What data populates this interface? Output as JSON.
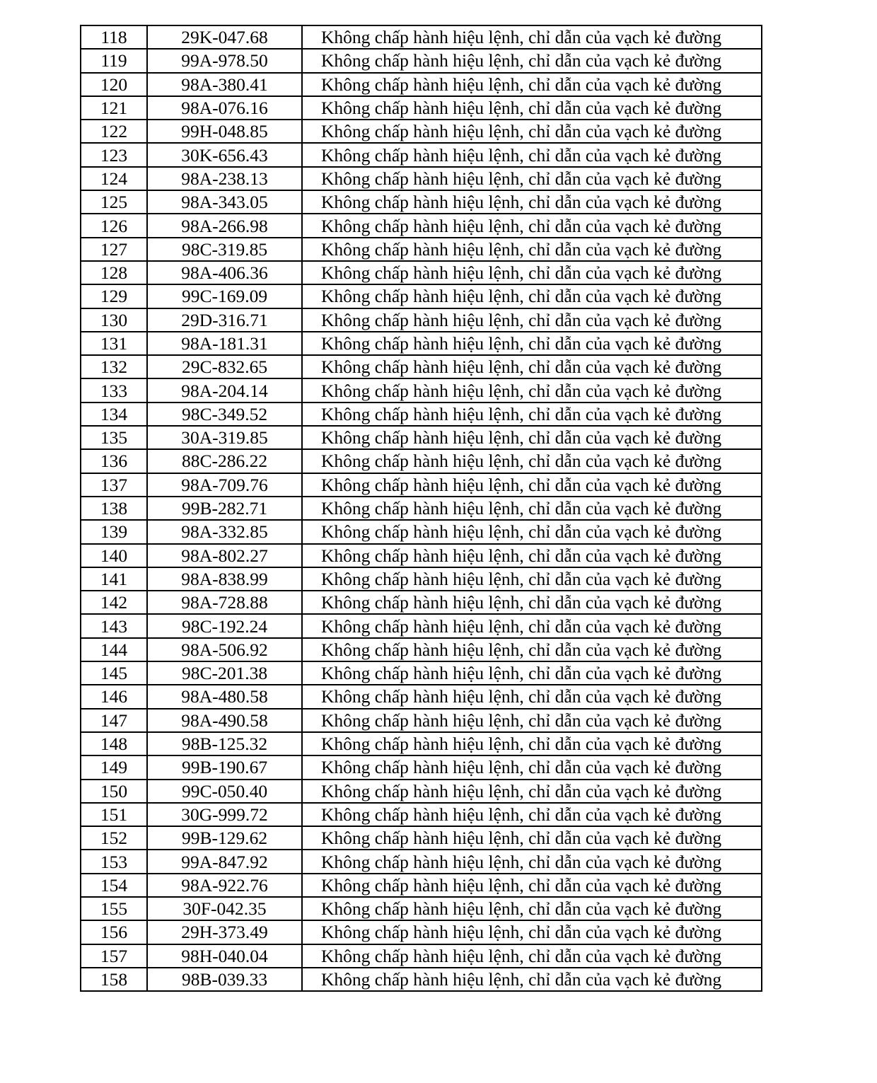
{
  "table": {
    "rows": [
      {
        "stt": "118",
        "plate": "29K-047.68",
        "violation": "Không chấp hành hiệu lệnh, chỉ dẫn của vạch kẻ đường"
      },
      {
        "stt": "119",
        "plate": "99A-978.50",
        "violation": "Không chấp hành hiệu lệnh, chỉ dẫn của vạch kẻ đường"
      },
      {
        "stt": "120",
        "plate": "98A-380.41",
        "violation": "Không chấp hành hiệu lệnh, chỉ dẫn của vạch kẻ đường"
      },
      {
        "stt": "121",
        "plate": "98A-076.16",
        "violation": "Không chấp hành hiệu lệnh, chỉ dẫn của vạch kẻ đường"
      },
      {
        "stt": "122",
        "plate": "99H-048.85",
        "violation": "Không chấp hành hiệu lệnh, chỉ dẫn của vạch kẻ đường"
      },
      {
        "stt": "123",
        "plate": "30K-656.43",
        "violation": "Không chấp hành hiệu lệnh, chỉ dẫn của vạch kẻ đường"
      },
      {
        "stt": "124",
        "plate": "98A-238.13",
        "violation": "Không chấp hành hiệu lệnh, chỉ dẫn của vạch kẻ đường"
      },
      {
        "stt": "125",
        "plate": "98A-343.05",
        "violation": "Không chấp hành hiệu lệnh, chỉ dẫn của vạch kẻ đường"
      },
      {
        "stt": "126",
        "plate": "98A-266.98",
        "violation": "Không chấp hành hiệu lệnh, chỉ dẫn của vạch kẻ đường"
      },
      {
        "stt": "127",
        "plate": "98C-319.85",
        "violation": "Không chấp hành hiệu lệnh, chỉ dẫn của vạch kẻ đường"
      },
      {
        "stt": "128",
        "plate": "98A-406.36",
        "violation": "Không chấp hành hiệu lệnh, chỉ dẫn của vạch kẻ đường"
      },
      {
        "stt": "129",
        "plate": "99C-169.09",
        "violation": "Không chấp hành hiệu lệnh, chỉ dẫn của vạch kẻ đường"
      },
      {
        "stt": "130",
        "plate": "29D-316.71",
        "violation": "Không chấp hành hiệu lệnh, chỉ dẫn của vạch kẻ đường"
      },
      {
        "stt": "131",
        "plate": "98A-181.31",
        "violation": "Không chấp hành hiệu lệnh, chỉ dẫn của vạch kẻ đường"
      },
      {
        "stt": "132",
        "plate": "29C-832.65",
        "violation": "Không chấp hành hiệu lệnh, chỉ dẫn của vạch kẻ đường"
      },
      {
        "stt": "133",
        "plate": "98A-204.14",
        "violation": "Không chấp hành hiệu lệnh, chỉ dẫn của vạch kẻ đường"
      },
      {
        "stt": "134",
        "plate": "98C-349.52",
        "violation": "Không chấp hành hiệu lệnh, chỉ dẫn của vạch kẻ đường"
      },
      {
        "stt": "135",
        "plate": "30A-319.85",
        "violation": "Không chấp hành hiệu lệnh, chỉ dẫn của vạch kẻ đường"
      },
      {
        "stt": "136",
        "plate": "88C-286.22",
        "violation": "Không chấp hành hiệu lệnh, chỉ dẫn của vạch kẻ đường"
      },
      {
        "stt": "137",
        "plate": "98A-709.76",
        "violation": "Không chấp hành hiệu lệnh, chỉ dẫn của vạch kẻ đường"
      },
      {
        "stt": "138",
        "plate": "99B-282.71",
        "violation": "Không chấp hành hiệu lệnh, chỉ dẫn của vạch kẻ đường"
      },
      {
        "stt": "139",
        "plate": "98A-332.85",
        "violation": "Không chấp hành hiệu lệnh, chỉ dẫn của vạch kẻ đường"
      },
      {
        "stt": "140",
        "plate": "98A-802.27",
        "violation": "Không chấp hành hiệu lệnh, chỉ dẫn của vạch kẻ đường"
      },
      {
        "stt": "141",
        "plate": "98A-838.99",
        "violation": "Không chấp hành hiệu lệnh, chỉ dẫn của vạch kẻ đường"
      },
      {
        "stt": "142",
        "plate": "98A-728.88",
        "violation": "Không chấp hành hiệu lệnh, chỉ dẫn của vạch kẻ đường"
      },
      {
        "stt": "143",
        "plate": "98C-192.24",
        "violation": "Không chấp hành hiệu lệnh, chỉ dẫn của vạch kẻ đường"
      },
      {
        "stt": "144",
        "plate": "98A-506.92",
        "violation": "Không chấp hành hiệu lệnh, chỉ dẫn của vạch kẻ đường"
      },
      {
        "stt": "145",
        "plate": "98C-201.38",
        "violation": "Không chấp hành hiệu lệnh, chỉ dẫn của vạch kẻ đường"
      },
      {
        "stt": "146",
        "plate": "98A-480.58",
        "violation": "Không chấp hành hiệu lệnh, chỉ dẫn của vạch kẻ đường"
      },
      {
        "stt": "147",
        "plate": "98A-490.58",
        "violation": "Không chấp hành hiệu lệnh, chỉ dẫn của vạch kẻ đường"
      },
      {
        "stt": "148",
        "plate": "98B-125.32",
        "violation": "Không chấp hành hiệu lệnh, chỉ dẫn của vạch kẻ đường"
      },
      {
        "stt": "149",
        "plate": "99B-190.67",
        "violation": "Không chấp hành hiệu lệnh, chỉ dẫn của vạch kẻ đường"
      },
      {
        "stt": "150",
        "plate": "99C-050.40",
        "violation": "Không chấp hành hiệu lệnh, chỉ dẫn của vạch kẻ đường"
      },
      {
        "stt": "151",
        "plate": "30G-999.72",
        "violation": "Không chấp hành hiệu lệnh, chỉ dẫn của vạch kẻ đường"
      },
      {
        "stt": "152",
        "plate": "99B-129.62",
        "violation": "Không chấp hành hiệu lệnh, chỉ dẫn của vạch kẻ đường"
      },
      {
        "stt": "153",
        "plate": "99A-847.92",
        "violation": "Không chấp hành hiệu lệnh, chỉ dẫn của vạch kẻ đường"
      },
      {
        "stt": "154",
        "plate": "98A-922.76",
        "violation": "Không chấp hành hiệu lệnh, chỉ dẫn của vạch kẻ đường"
      },
      {
        "stt": "155",
        "plate": "30F-042.35",
        "violation": "Không chấp hành hiệu lệnh, chỉ dẫn của vạch kẻ đường"
      },
      {
        "stt": "156",
        "plate": "29H-373.49",
        "violation": "Không chấp hành hiệu lệnh, chỉ dẫn của vạch kẻ đường"
      },
      {
        "stt": "157",
        "plate": "98H-040.04",
        "violation": "Không chấp hành hiệu lệnh, chỉ dẫn của vạch kẻ đường"
      },
      {
        "stt": "158",
        "plate": "98B-039.33",
        "violation": "Không chấp hành hiệu lệnh, chỉ dẫn của vạch kẻ đường"
      }
    ]
  }
}
